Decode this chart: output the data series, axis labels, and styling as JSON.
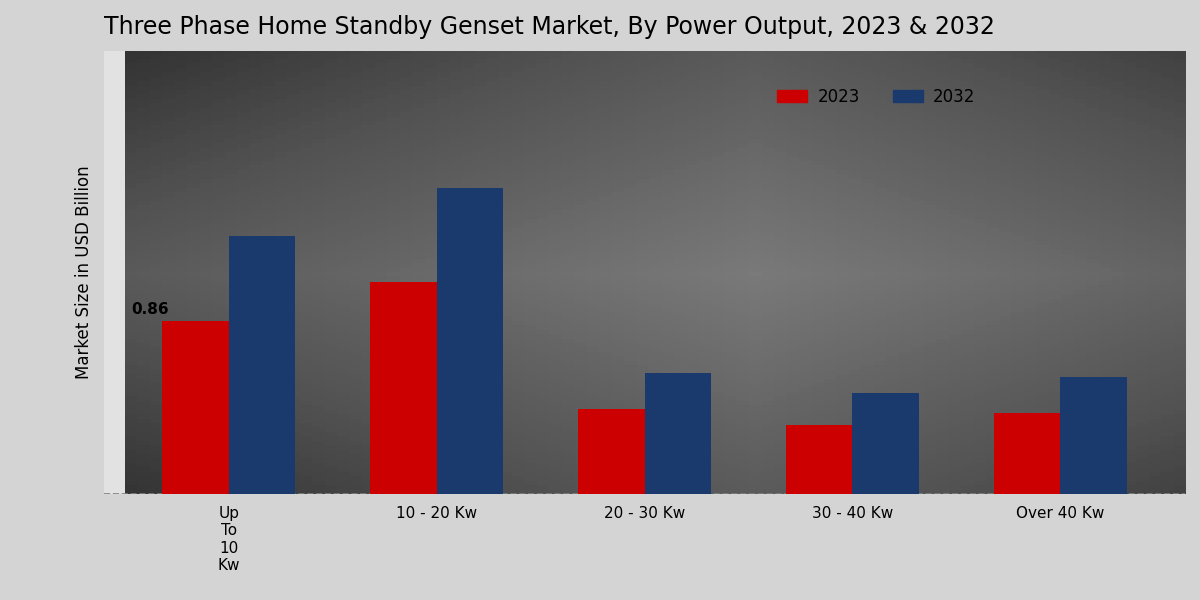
{
  "title": "Three Phase Home Standby Genset Market, By Power Output, 2023 & 2032",
  "ylabel": "Market Size in USD Billion",
  "categories": [
    "Up\nTo\n10\nKw",
    "10 - 20 Kw",
    "20 - 30 Kw",
    "30 - 40 Kw",
    "Over 40 Kw"
  ],
  "values_2023": [
    0.86,
    1.05,
    0.42,
    0.34,
    0.4
  ],
  "values_2032": [
    1.28,
    1.52,
    0.6,
    0.5,
    0.58
  ],
  "color_2023": "#cc0000",
  "color_2032": "#1a3a6e",
  "bar_width": 0.32,
  "annotation_label": "0.86",
  "legend_labels": [
    "2023",
    "2032"
  ],
  "background_color": "#d8d8d8",
  "ylim": [
    0,
    2.2
  ],
  "title_fontsize": 17,
  "ylabel_fontsize": 12,
  "tick_fontsize": 11,
  "legend_fontsize": 12
}
